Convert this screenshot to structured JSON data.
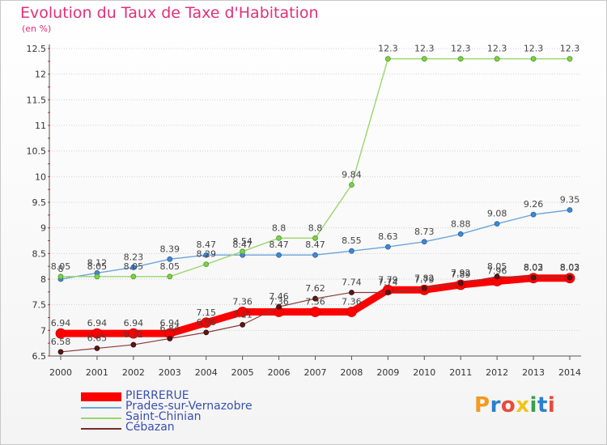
{
  "header": {
    "title": "Evolution du Taux de Taxe d'Habitation",
    "subtitle": "(en %)"
  },
  "brand": {
    "text": "Proxiti",
    "colors": [
      "#f39a1e",
      "#2a7fcf",
      "#e84b3a",
      "#f2c41a",
      "#3aa04a",
      "#2a7fcf",
      "#e84b3a"
    ]
  },
  "chart_data": {
    "type": "line",
    "x": [
      2000,
      2001,
      2002,
      2003,
      2004,
      2005,
      2006,
      2007,
      2008,
      2009,
      2010,
      2011,
      2012,
      2013,
      2014
    ],
    "ylim": [
      6.5,
      12.5
    ],
    "yticks": [
      6.5,
      7,
      7.5,
      8,
      8.5,
      9,
      9.5,
      10,
      10.5,
      11,
      11.5,
      12,
      12.5
    ],
    "ytick_labels": [
      "6.5",
      "7",
      "7.5",
      "8",
      "8.5",
      "9",
      "9.5",
      "10",
      "10.5",
      "11",
      "11.5",
      "12",
      "12.5"
    ],
    "grid": "horizontal",
    "legend": "bottom-left",
    "series": [
      {
        "name": "PIERRERUE",
        "color": "#ff0000",
        "values": [
          6.94,
          6.94,
          6.94,
          6.94,
          7.15,
          7.36,
          7.36,
          7.36,
          7.36,
          7.79,
          7.79,
          7.89,
          7.96,
          8.02,
          8.02
        ],
        "labels": [
          "6.94",
          "6.94",
          "6.94",
          "6.94",
          "7.15",
          "7.36",
          "7.36",
          "7.36",
          "7.36",
          "7.79",
          "7.79",
          "7.89",
          "7.96",
          "8.02",
          "8.02"
        ]
      },
      {
        "name": "Prades-sur-Vernazobre",
        "color": "#6ca5d9",
        "values": [
          8.0,
          8.12,
          8.23,
          8.39,
          8.47,
          8.47,
          8.47,
          8.47,
          8.55,
          8.63,
          8.73,
          8.88,
          9.08,
          9.26,
          9.35
        ],
        "labels": [
          "8",
          "8.12",
          "8.23",
          "8.39",
          "8.47",
          "8.47",
          "8.47",
          "8.47",
          "8.55",
          "8.63",
          "8.73",
          "8.88",
          "9.08",
          "9.26",
          "9.35"
        ]
      },
      {
        "name": "Saint-Chinian",
        "color": "#9ad66a",
        "values": [
          8.05,
          8.05,
          8.05,
          8.05,
          8.29,
          8.54,
          8.8,
          8.8,
          9.84,
          12.3,
          12.3,
          12.3,
          12.3,
          12.3,
          12.3
        ],
        "labels": [
          "8.05",
          "8.05",
          "8.05",
          "8.05",
          "8.29",
          "8.54",
          "8.8",
          "8.8",
          "9.84",
          "12.3",
          "12.3",
          "12.3",
          "12.3",
          "12.3",
          "12.3"
        ]
      },
      {
        "name": "Cébazan",
        "color": "#7a2a2a",
        "values": [
          6.58,
          6.65,
          6.72,
          6.84,
          6.96,
          7.11,
          7.46,
          7.62,
          7.74,
          7.74,
          7.82,
          7.92,
          8.05,
          8.03,
          8.03
        ],
        "labels": [
          "6.58",
          "6.65",
          "6.72",
          "6.84",
          "6.96",
          "7.11",
          "7.46",
          "7.62",
          "7.74",
          "7.74",
          "7.82",
          "7.92",
          "8.05",
          "8.03",
          "8.03"
        ]
      }
    ]
  }
}
